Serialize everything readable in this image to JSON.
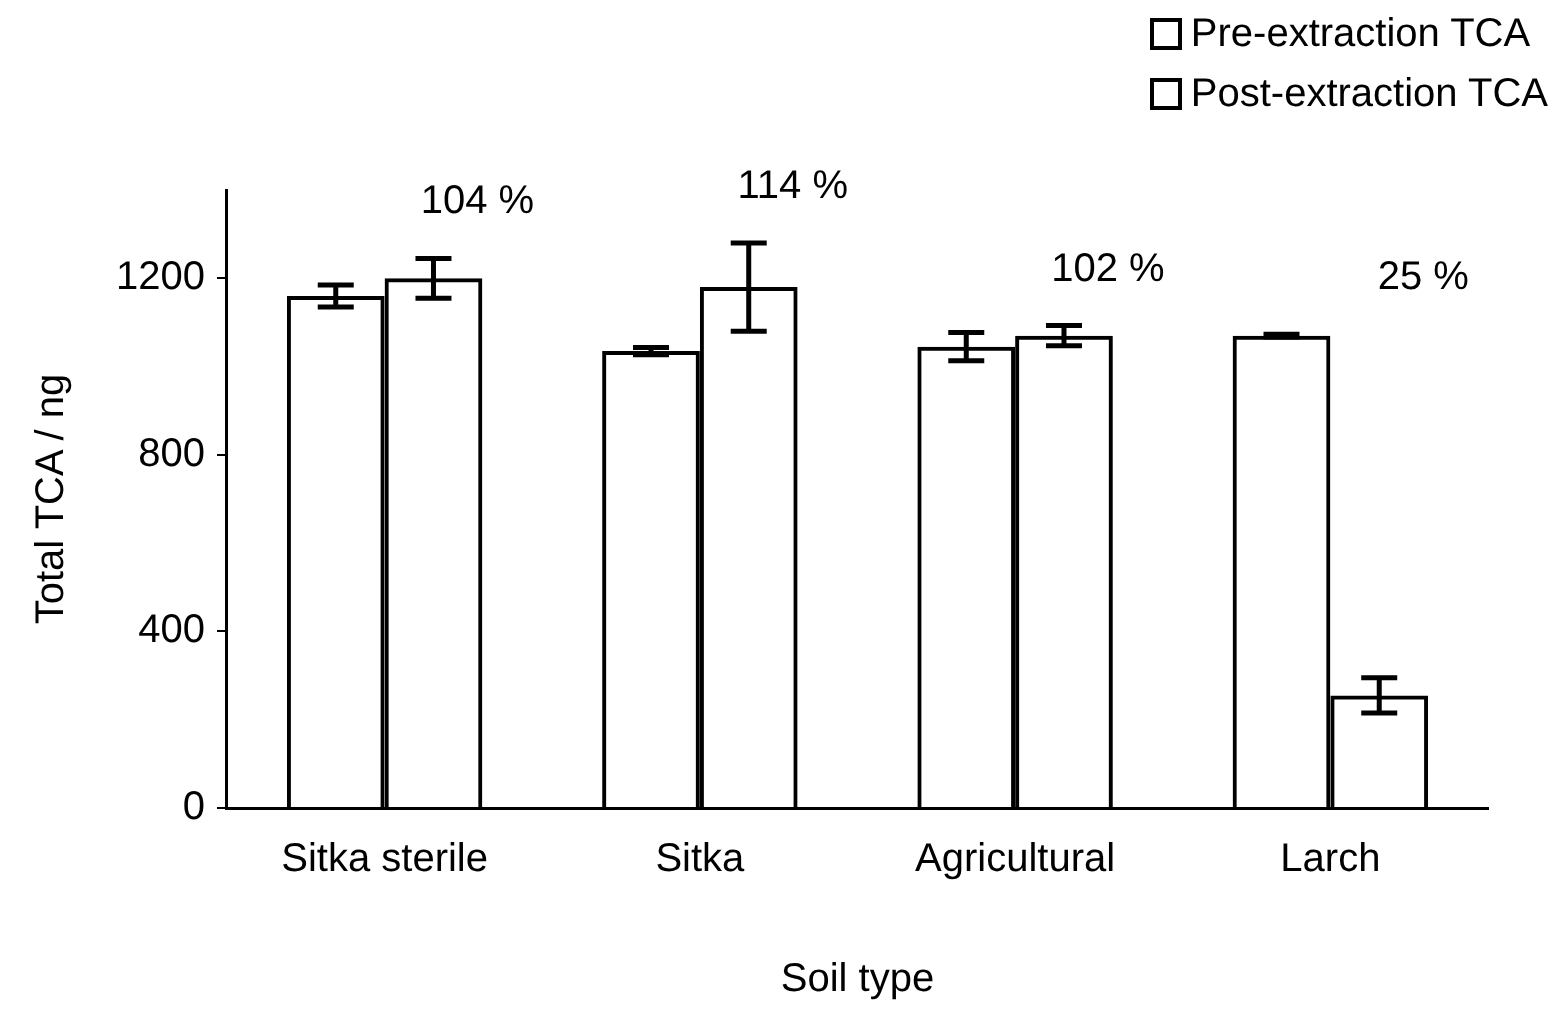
{
  "chart_data": {
    "type": "bar",
    "xlabel": "Soil type",
    "ylabel": "Total TCA / ng",
    "categories": [
      "Sitka sterile",
      "Sitka",
      "Agricultural",
      "Larch"
    ],
    "series": [
      {
        "name": "Pre-extraction TCA",
        "color": "#000000",
        "values": [
          1160,
          1035,
          1045,
          1070
        ],
        "errors": [
          25,
          8,
          32,
          3
        ]
      },
      {
        "name": "Post-extraction TCA",
        "color": "#000000",
        "values": [
          1200,
          1180,
          1070,
          255
        ],
        "errors": [
          45,
          100,
          23,
          40
        ]
      }
    ],
    "ylim": [
      0,
      1400
    ],
    "yticks": [
      0,
      400,
      800,
      1200
    ],
    "grid": false,
    "legend": "top right",
    "annotations": [
      "104 %",
      "114 %",
      "102 %",
      "25 %"
    ]
  }
}
